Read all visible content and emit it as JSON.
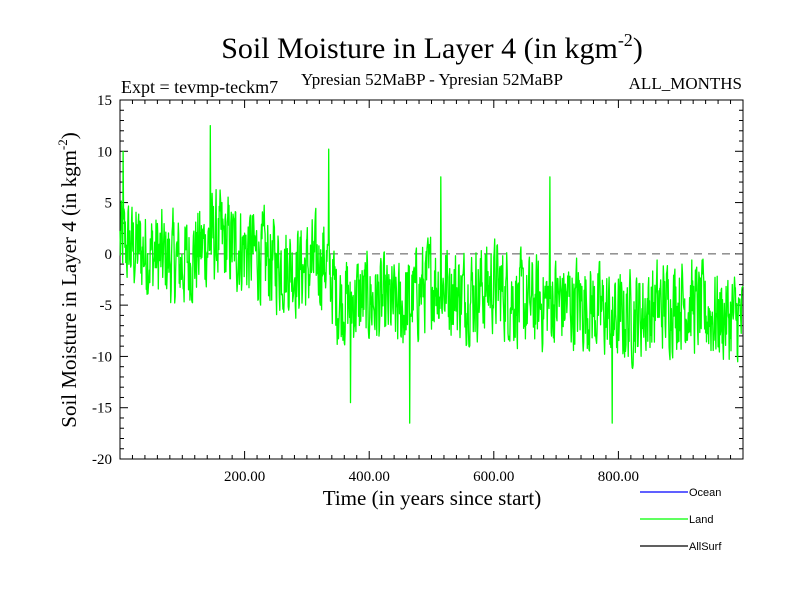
{
  "chart_data": {
    "type": "line",
    "title_main": "Soil Moisture in Layer 4 (in kgm",
    "title_sup": "-2",
    "title_end": ")",
    "expt_label": "Expt = tevmp-teckm7",
    "subtitle": "Ypresian  52MaBP - Ypresian  52MaBP",
    "period_label": "ALL_MONTHS",
    "xlabel": "Time (in years since start)",
    "ylabel_main": "Soil Moisture in Layer 4 (in kgm",
    "ylabel_sup": "-2",
    "ylabel_end": ")",
    "xlim": [
      0,
      1000
    ],
    "ylim": [
      -20,
      15
    ],
    "x_ticks": [
      200,
      400,
      600,
      800
    ],
    "x_tick_labels": [
      "200.00",
      "400.00",
      "600.00",
      "800.00"
    ],
    "y_ticks": [
      15,
      10,
      5,
      0,
      -5,
      -10,
      -15,
      -20
    ],
    "y_tick_labels": [
      "15",
      "10",
      "5",
      "0",
      "-5",
      "-10",
      "-15",
      "-20"
    ],
    "zero_line": 0,
    "series": [
      {
        "name": "Ocean",
        "color": "#0000ff",
        "points": []
      },
      {
        "name": "Land",
        "color": "#00ff00",
        "trend_knots": [
          [
            0,
            1.0
          ],
          [
            50,
            0.0
          ],
          [
            100,
            -1.0
          ],
          [
            150,
            1.5
          ],
          [
            200,
            0.5
          ],
          [
            250,
            -1.0
          ],
          [
            300,
            -1.5
          ],
          [
            330,
            -0.5
          ],
          [
            350,
            -4.5
          ],
          [
            400,
            -4.5
          ],
          [
            450,
            -5.5
          ],
          [
            500,
            -2.5
          ],
          [
            550,
            -4.0
          ],
          [
            600,
            -3.0
          ],
          [
            650,
            -5.0
          ],
          [
            700,
            -4.5
          ],
          [
            750,
            -5.0
          ],
          [
            800,
            -6.5
          ],
          [
            850,
            -5.5
          ],
          [
            900,
            -4.5
          ],
          [
            950,
            -6.0
          ],
          [
            1000,
            -6.5
          ]
        ],
        "noise_amplitude": 3.2,
        "peaks": [
          [
            145,
            12.5
          ],
          [
            5,
            10
          ],
          [
            335,
            10.2
          ],
          [
            465,
            -16.5
          ],
          [
            790,
            -16.5
          ],
          [
            370,
            -14.5
          ],
          [
            515,
            7.5
          ],
          [
            690,
            7.5
          ]
        ]
      },
      {
        "name": "AllSurf",
        "color": "#000000",
        "points": []
      }
    ],
    "legend_position": "bottom-right"
  }
}
